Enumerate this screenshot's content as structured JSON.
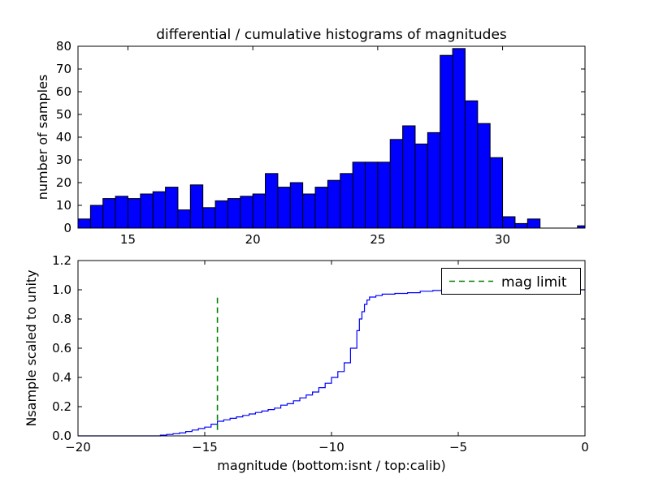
{
  "colors": {
    "background": "#ffffff",
    "bar_fill": "#0000ff",
    "bar_edge": "#000000",
    "line": "#0000ff",
    "mag_limit": "#008000",
    "axis": "#000000",
    "text": "#000000"
  },
  "chart_data": [
    {
      "type": "bar",
      "name": "differential-histogram-top",
      "title": "differential / cumulative histograms of magnitudes",
      "xlabel": "",
      "ylabel": "number of samples",
      "bin_start": 13.0,
      "bin_width": 0.5,
      "counts": [
        4,
        10,
        13,
        14,
        13,
        15,
        16,
        18,
        8,
        19,
        9,
        12,
        13,
        14,
        15,
        24,
        18,
        20,
        15,
        18,
        21,
        24,
        29,
        29,
        29,
        39,
        45,
        37,
        42,
        76,
        79,
        56,
        46,
        31,
        5,
        2,
        4,
        0,
        0,
        0,
        1
      ],
      "xlim": [
        13.0,
        33.3
      ],
      "ylim": [
        0,
        80
      ],
      "xticks": [
        15,
        20,
        25,
        30
      ],
      "xtick_labels": [
        "15",
        "20",
        "25",
        "30"
      ],
      "yticks": [
        0,
        10,
        20,
        30,
        40,
        50,
        60,
        70,
        80
      ],
      "ytick_labels": [
        "0",
        "10",
        "20",
        "30",
        "40",
        "50",
        "60",
        "70",
        "80"
      ],
      "grid": false
    },
    {
      "type": "line",
      "name": "cumulative-histogram-bottom",
      "step": true,
      "xlabel": "magnitude (bottom:isnt / top:calib)",
      "ylabel": "Nsample scaled to unity",
      "x": [
        -20,
        -17.0,
        -16.75,
        -16.5,
        -16.25,
        -16.0,
        -15.75,
        -15.5,
        -15.25,
        -15.0,
        -14.75,
        -14.5,
        -14.25,
        -14.0,
        -13.75,
        -13.5,
        -13.25,
        -13.0,
        -12.75,
        -12.5,
        -12.25,
        -12.0,
        -11.75,
        -11.5,
        -11.25,
        -11.0,
        -10.75,
        -10.5,
        -10.25,
        -10.0,
        -9.75,
        -9.5,
        -9.25,
        -9.0,
        -8.9,
        -8.8,
        -8.7,
        -8.6,
        -8.5,
        -8.25,
        -8.0,
        -7.5,
        -7.0,
        -6.5,
        -6.0,
        -5.5,
        0
      ],
      "y": [
        0,
        0,
        0.005,
        0.01,
        0.015,
        0.02,
        0.03,
        0.04,
        0.05,
        0.06,
        0.08,
        0.1,
        0.11,
        0.12,
        0.13,
        0.14,
        0.15,
        0.16,
        0.17,
        0.18,
        0.19,
        0.21,
        0.22,
        0.24,
        0.26,
        0.28,
        0.3,
        0.33,
        0.36,
        0.4,
        0.44,
        0.5,
        0.6,
        0.72,
        0.8,
        0.85,
        0.9,
        0.93,
        0.95,
        0.96,
        0.97,
        0.975,
        0.98,
        0.99,
        0.995,
        1.0,
        1.0
      ],
      "xlim": [
        -20,
        0
      ],
      "ylim": [
        0,
        1.2
      ],
      "xticks": [
        -20,
        -15,
        -10,
        -5,
        0
      ],
      "xtick_labels": [
        "−20",
        "−15",
        "−10",
        "−5",
        "0"
      ],
      "yticks": [
        0.0,
        0.2,
        0.4,
        0.6,
        0.8,
        1.0,
        1.2
      ],
      "ytick_labels": [
        "0.0",
        "0.2",
        "0.4",
        "0.6",
        "0.8",
        "1.0",
        "1.2"
      ],
      "grid": false,
      "annotations": [
        {
          "type": "vline",
          "x": -14.5,
          "color": "#008000",
          "style": "dashed",
          "y_from": 0.04,
          "y_to": 0.96,
          "label": "mag limit"
        }
      ],
      "legend": {
        "position": "upper right",
        "entries": [
          "mag limit"
        ]
      }
    }
  ]
}
